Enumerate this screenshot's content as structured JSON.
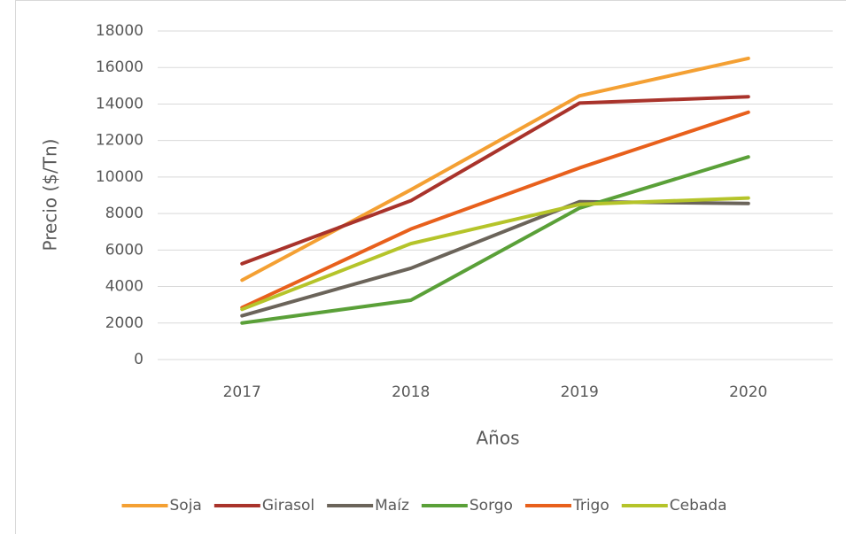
{
  "chart_data": {
    "type": "line",
    "x_label": "Años",
    "y_label": "Precio ($/Tn)",
    "categories": [
      "2017",
      "2018",
      "2019",
      "2020"
    ],
    "series": [
      {
        "name": "Soja",
        "color": "#f4a033",
        "values": [
          4350,
          9300,
          14450,
          16500
        ]
      },
      {
        "name": "Girasol",
        "color": "#a9332b",
        "values": [
          5250,
          8700,
          14050,
          14400
        ]
      },
      {
        "name": "Maíz",
        "color": "#6b645a",
        "values": [
          2400,
          5000,
          8650,
          8550
        ]
      },
      {
        "name": "Sorgo",
        "color": "#5aa038",
        "values": [
          2000,
          3250,
          8300,
          11100
        ]
      },
      {
        "name": "Trigo",
        "color": "#e8601c",
        "values": [
          2850,
          7150,
          10500,
          13550
        ]
      },
      {
        "name": "Cebada",
        "color": "#b5c42a",
        "values": [
          2750,
          6350,
          8500,
          8850
        ]
      }
    ],
    "ylim": [
      0,
      18000
    ],
    "yticks": [
      0,
      2000,
      4000,
      6000,
      8000,
      10000,
      12000,
      14000,
      16000,
      18000
    ],
    "grid": true,
    "legend": "bottom"
  }
}
